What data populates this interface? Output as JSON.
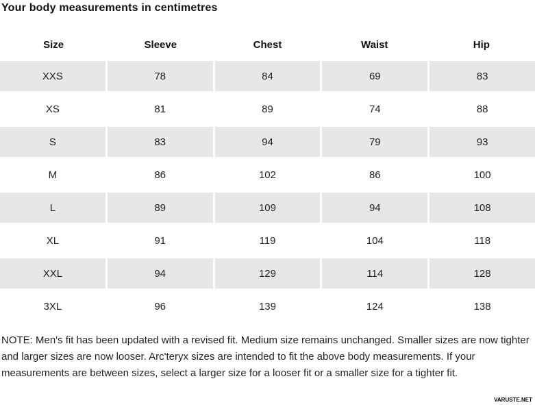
{
  "title": "Your body measurements in centimetres",
  "table": {
    "headers": [
      "Size",
      "Sleeve",
      "Chest",
      "Waist",
      "Hip"
    ],
    "rows": [
      {
        "cells": [
          "XXS",
          "78",
          "84",
          "69",
          "83"
        ]
      },
      {
        "cells": [
          "XS",
          "81",
          "89",
          "74",
          "88"
        ]
      },
      {
        "cells": [
          "S",
          "83",
          "94",
          "79",
          "93"
        ]
      },
      {
        "cells": [
          "M",
          "86",
          "102",
          "86",
          "100"
        ]
      },
      {
        "cells": [
          "L",
          "89",
          "109",
          "94",
          "108"
        ]
      },
      {
        "cells": [
          "XL",
          "91",
          "119",
          "104",
          "118"
        ]
      },
      {
        "cells": [
          "XXL",
          "94",
          "129",
          "114",
          "128"
        ]
      },
      {
        "cells": [
          "3XL",
          "96",
          "139",
          "124",
          "138"
        ]
      }
    ]
  },
  "note": "NOTE: Men's fit has been updated with a revised fit. Medium size remains unchanged. Smaller sizes are now tighter and larger sizes are now looser. Arc'teryx sizes are intended to fit the above body measurements. If your measurements are between sizes, select a larger size for a looser fit or a smaller size for a tighter fit.",
  "watermark": "VARUSTE.NET",
  "colors": {
    "row_shaded": "#e7e7e7",
    "background": "#ffffff",
    "text": "#1a1a1a"
  }
}
